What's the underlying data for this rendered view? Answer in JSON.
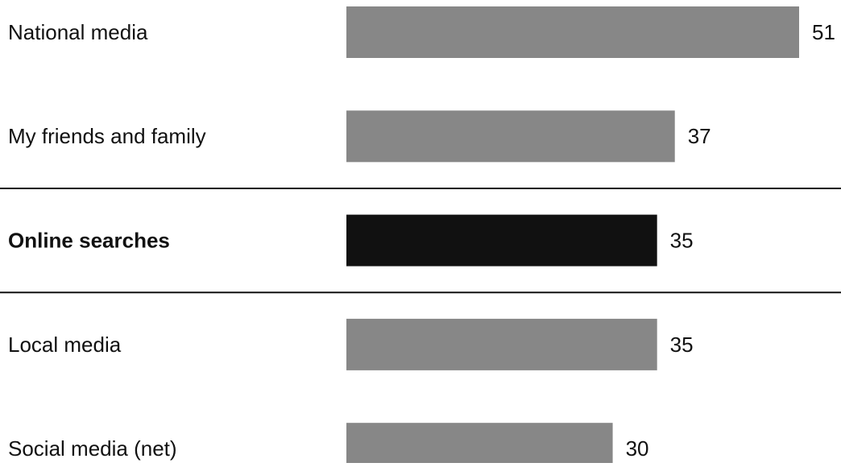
{
  "chart_data": {
    "type": "bar",
    "orientation": "horizontal",
    "categories": [
      "National media",
      "My friends and family",
      "Online searches",
      "Local media",
      "Social media (net)"
    ],
    "values": [
      51,
      37,
      35,
      35,
      30
    ],
    "color": "#878787",
    "highlight_color": "#111111",
    "highlight": 2
  }
}
